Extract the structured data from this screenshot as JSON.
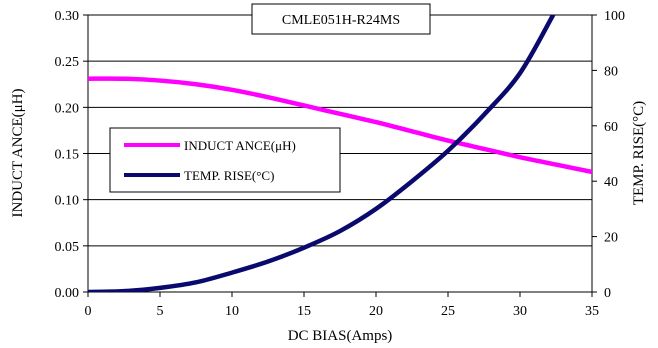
{
  "chart_data": {
    "type": "line",
    "title": "CMLE051H-R24MS",
    "xlabel": "DC BIAS(Amps)",
    "ylabel_left": "INDUCT ANCE(μH)",
    "ylabel_right": "TEMP. RISE(°C)",
    "xlim": [
      0,
      35
    ],
    "ylim_left": [
      0,
      0.3
    ],
    "ylim_right": [
      0,
      100
    ],
    "x_ticks": [
      "0",
      "5",
      "10",
      "15",
      "20",
      "25",
      "30",
      "35"
    ],
    "y_left_ticks": [
      "0.00",
      "0.05",
      "0.10",
      "0.15",
      "0.20",
      "0.25",
      "0.30"
    ],
    "y_right_ticks": [
      "0",
      "20",
      "40",
      "60",
      "80",
      "100"
    ],
    "grid": "horizontal",
    "legend_position": "middle-left",
    "series": [
      {
        "name": "INDUCT ANCE(μH)",
        "axis": "left",
        "color": "#ff00ff",
        "x": [
          0,
          2.5,
          5,
          7.5,
          10,
          12.5,
          15,
          17.5,
          20,
          22.5,
          25,
          27.5,
          30,
          32.5,
          35
        ],
        "y": [
          0.231,
          0.231,
          0.229,
          0.225,
          0.219,
          0.211,
          0.202,
          0.193,
          0.184,
          0.174,
          0.164,
          0.155,
          0.146,
          0.138,
          0.13
        ]
      },
      {
        "name": "TEMP. RISE(°C)",
        "axis": "right",
        "color": "#0a0a6e",
        "x": [
          0,
          2.5,
          5,
          7.5,
          10,
          12.5,
          15,
          17.5,
          20,
          22.5,
          25,
          27.5,
          30,
          32.3
        ],
        "y": [
          0,
          0.3,
          1.5,
          3.5,
          7,
          11,
          16,
          22,
          30,
          40,
          51,
          64,
          79,
          100
        ]
      }
    ]
  }
}
